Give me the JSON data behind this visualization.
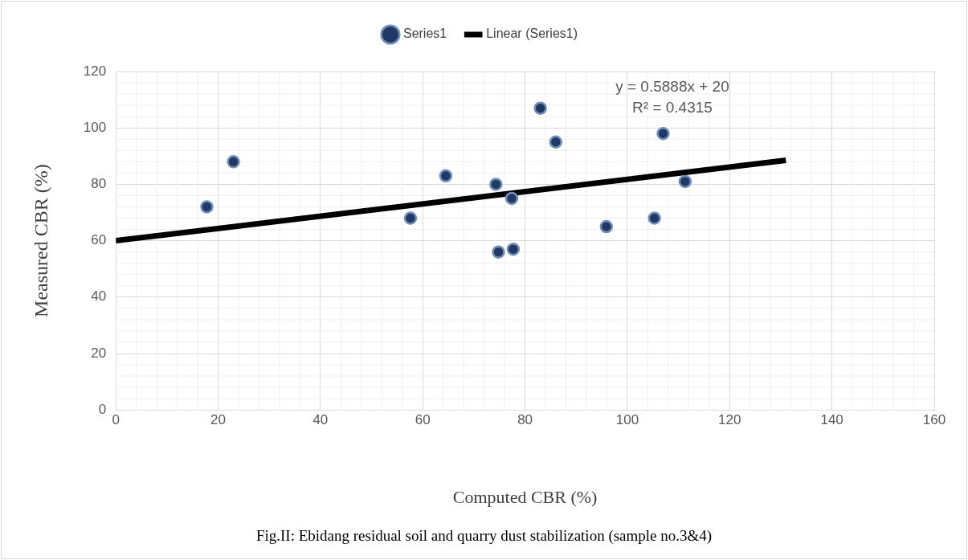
{
  "chart_data": {
    "type": "scatter",
    "xlabel": "Computed CBR (%)",
    "ylabel": "Measured CBR (%)",
    "xlim": [
      0,
      160
    ],
    "xticks": [
      0,
      20,
      40,
      60,
      80,
      100,
      120,
      140,
      160
    ],
    "ylim": [
      0,
      120
    ],
    "yticks": [
      0,
      20,
      40,
      60,
      80,
      100,
      120
    ],
    "grid": true,
    "legend": "top",
    "series": [
      {
        "name": "Series1",
        "marker": "circle",
        "color": "#1f3864",
        "x": [
          17.8,
          23,
          57.6,
          64.5,
          74.3,
          74.8,
          77.4,
          77.7,
          83,
          86,
          95.9,
          105.3,
          107,
          111.3
        ],
        "values": [
          72,
          88,
          68,
          83,
          80,
          56,
          75,
          57,
          107,
          95,
          65,
          68,
          98,
          81
        ]
      },
      {
        "name": "Linear (Series1)",
        "type": "line",
        "marker": "none",
        "color": "#000000",
        "x": [
          0,
          131
        ],
        "values": [
          60,
          88.5
        ]
      }
    ],
    "annotations": [
      "y = 0.5888x + 20",
      "R² = 0.4315",
      "Fig.II: Ebidang residual soil and quarry dust stabilization (sample no.3&4)"
    ]
  }
}
